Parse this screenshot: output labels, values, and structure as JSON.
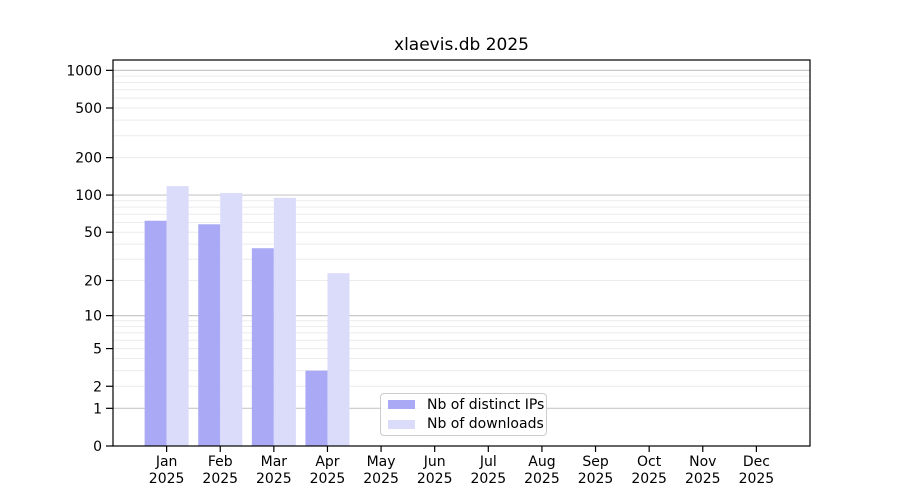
{
  "chart_data": {
    "type": "bar",
    "title": "xlaevis.db 2025",
    "categories": [
      "Jan",
      "Feb",
      "Mar",
      "Apr",
      "May",
      "Jun",
      "Jul",
      "Aug",
      "Sep",
      "Oct",
      "Nov",
      "Dec"
    ],
    "xtick_second_line": "2025",
    "series": [
      {
        "name": "Nb of distinct IPs",
        "color": "#a9a9f6",
        "values": [
          62,
          58,
          37,
          3,
          0,
          0,
          0,
          0,
          0,
          0,
          0,
          0
        ]
      },
      {
        "name": "Nb of downloads",
        "color": "#dbdbfa",
        "values": [
          118,
          104,
          95,
          23,
          0,
          0,
          0,
          0,
          0,
          0,
          0,
          0
        ]
      }
    ],
    "yscale": "log10(1+value)",
    "ylim": [
      0,
      1210
    ],
    "yticks": [
      0,
      1,
      2,
      5,
      10,
      20,
      50,
      100,
      200,
      500,
      1000
    ],
    "grid": {
      "major": [
        1,
        10,
        100,
        1000
      ],
      "minor": [
        2,
        3,
        4,
        5,
        6,
        7,
        8,
        9,
        20,
        30,
        40,
        50,
        60,
        70,
        80,
        90,
        200,
        300,
        400,
        500,
        600,
        700,
        800,
        900
      ]
    },
    "legend_position": "lower center",
    "colors": {
      "major_grid": "#c8c8c8",
      "minor_grid": "#ececec",
      "axis": "#000000",
      "background": "#ffffff",
      "text": "#000000"
    }
  }
}
